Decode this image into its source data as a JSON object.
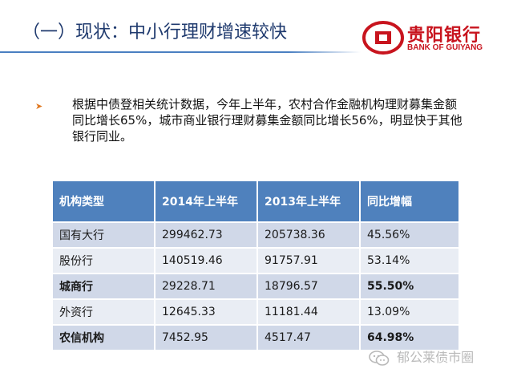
{
  "header": {
    "title": "（一）现状：中小行理财增速较快"
  },
  "logo": {
    "name_cn": "贵阳银行",
    "name_en": "BANK OF GUIYANG",
    "brand_color": "#c8141e"
  },
  "bullet": {
    "icon": "arrow-bullet-icon",
    "text": "根据中债登相关统计数据，今年上半年，农村合作金融机构理财募集金额同比增长65%，城市商业银行理财募集金额同比增长56%，明显快于其他银行同业。"
  },
  "table": {
    "header_color": "#4f81bd",
    "columns": [
      "机构类型",
      "2014年上半年",
      "2013年上半年",
      "同比增幅"
    ],
    "rows": [
      {
        "type": "国有大行",
        "h1_2014": "299462.73",
        "h1_2013": "205738.36",
        "growth": "45.56%",
        "highlight": false
      },
      {
        "type": "股份行",
        "h1_2014": "140519.46",
        "h1_2013": "91757.91",
        "growth": "53.14%",
        "highlight": false
      },
      {
        "type": "城商行",
        "h1_2014": "29228.71",
        "h1_2013": "18796.57",
        "growth": "55.50%",
        "highlight": true
      },
      {
        "type": "外资行",
        "h1_2014": "12645.33",
        "h1_2013": "11181.44",
        "growth": "13.09%",
        "highlight": false
      },
      {
        "type": "农信机构",
        "h1_2014": "7452.95",
        "h1_2013": "4517.47",
        "growth": "64.98%",
        "highlight": true
      }
    ]
  },
  "watermark": {
    "icon": "wechat-icon",
    "text": "郁公莱债市圈"
  }
}
